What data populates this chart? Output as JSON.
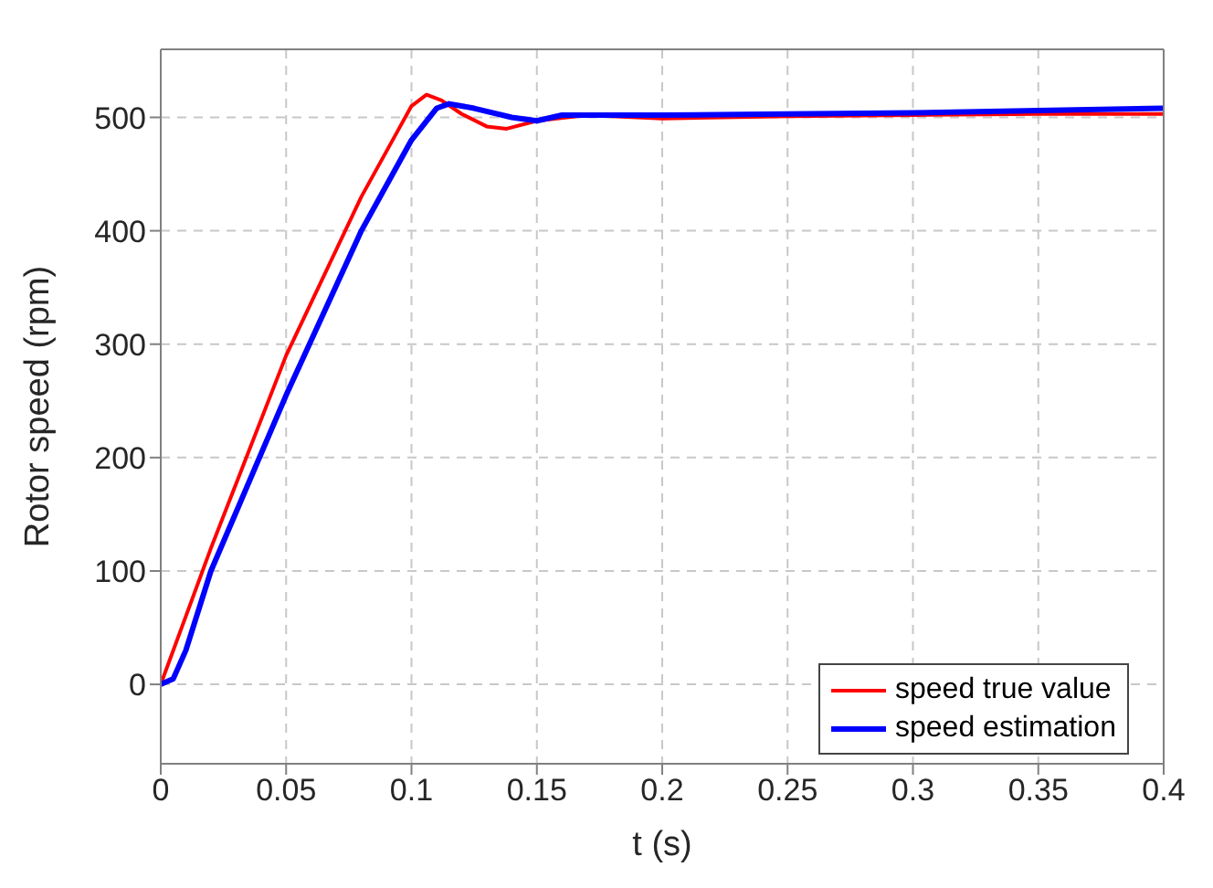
{
  "chart_data": {
    "type": "line",
    "xlabel": "t (s)",
    "ylabel": "Rotor speed (rpm)",
    "xlim": [
      0,
      0.4
    ],
    "xticks": [
      0,
      0.05,
      0.1,
      0.15,
      0.2,
      0.25,
      0.3,
      0.35,
      0.4
    ],
    "ylim": [
      -70,
      560
    ],
    "yticks": [
      0,
      100,
      200,
      300,
      400,
      500
    ],
    "grid": true,
    "legend": "bottom right",
    "line_style": "solid",
    "marker": "none",
    "series": [
      {
        "name": "speed true value",
        "color": "#ff0000",
        "x": [
          0,
          0.01,
          0.02,
          0.05,
          0.08,
          0.095,
          0.1,
          0.106,
          0.112,
          0.12,
          0.13,
          0.138,
          0.15,
          0.17,
          0.2,
          0.25,
          0.3,
          0.35,
          0.4
        ],
        "values": [
          0,
          60,
          120,
          290,
          430,
          490,
          510,
          520,
          515,
          503,
          492,
          490,
          497,
          502,
          499,
          501,
          502,
          503,
          503
        ]
      },
      {
        "name": "speed estimation",
        "color": "#0000ff",
        "x": [
          0,
          0.005,
          0.01,
          0.02,
          0.05,
          0.08,
          0.1,
          0.11,
          0.115,
          0.125,
          0.14,
          0.15,
          0.16,
          0.2,
          0.25,
          0.3,
          0.35,
          0.4
        ],
        "values": [
          0,
          5,
          30,
          100,
          255,
          400,
          480,
          508,
          512,
          508,
          500,
          497,
          502,
          502,
          503,
          504,
          506,
          508
        ]
      }
    ]
  }
}
